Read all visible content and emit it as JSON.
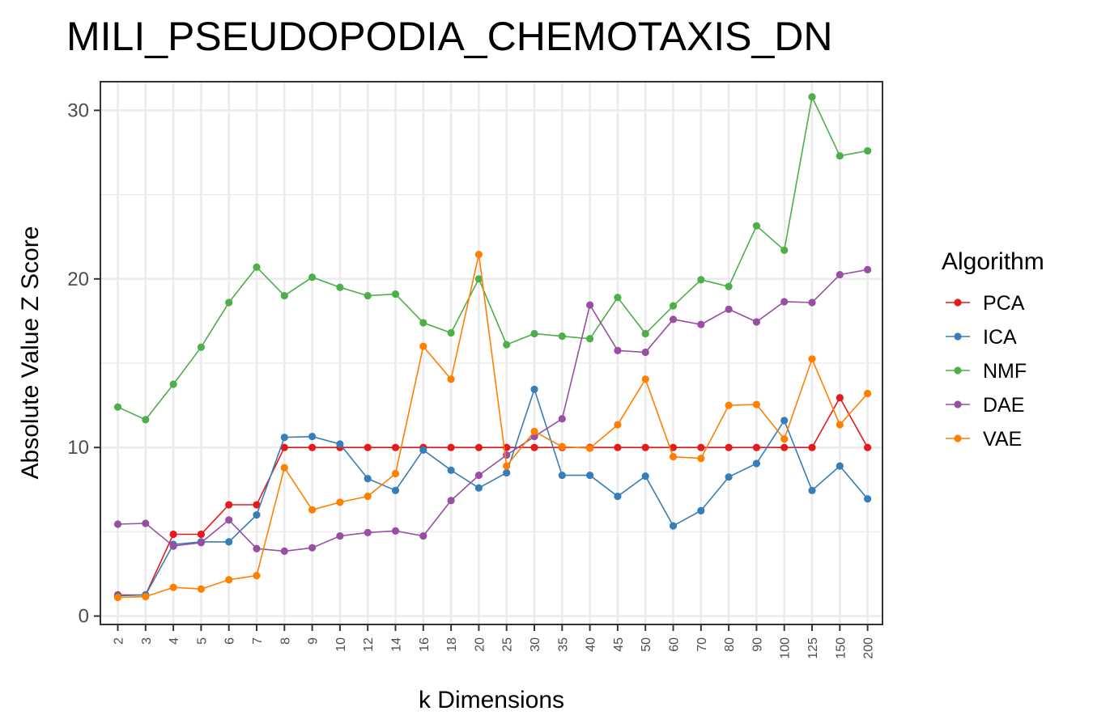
{
  "chart_data": {
    "type": "line",
    "title": "MILI_PSEUDOPODIA_CHEMOTAXIS_DN",
    "xlabel": "k Dimensions",
    "ylabel": "Absolute Value Z Score",
    "categories": [
      "2",
      "3",
      "4",
      "5",
      "6",
      "7",
      "8",
      "9",
      "10",
      "12",
      "14",
      "16",
      "18",
      "20",
      "25",
      "30",
      "35",
      "40",
      "45",
      "50",
      "60",
      "70",
      "80",
      "90",
      "100",
      "125",
      "150",
      "200"
    ],
    "yticks": [
      0,
      10,
      20,
      30
    ],
    "ylim": [
      -0.5,
      31.7
    ],
    "grid": true,
    "legend": {
      "title": "Algorithm",
      "position": "right"
    },
    "series": [
      {
        "name": "PCA",
        "color": "#e41a1c",
        "values": [
          1.25,
          1.25,
          4.85,
          4.85,
          6.6,
          6.6,
          10.0,
          10.0,
          10.0,
          10.0,
          10.0,
          10.0,
          10.0,
          10.0,
          10.0,
          10.0,
          10.0,
          10.0,
          10.0,
          10.0,
          10.0,
          10.0,
          10.0,
          10.0,
          10.0,
          10.0,
          12.95,
          10.0
        ]
      },
      {
        "name": "ICA",
        "color": "#377eb8",
        "values": [
          1.2,
          1.25,
          4.25,
          4.4,
          4.4,
          6.0,
          10.6,
          10.65,
          10.2,
          8.15,
          7.45,
          9.85,
          8.65,
          7.6,
          8.5,
          13.45,
          8.35,
          8.35,
          7.1,
          8.3,
          5.35,
          6.25,
          8.25,
          9.05,
          11.6,
          7.45,
          8.9,
          6.95
        ]
      },
      {
        "name": "NMF",
        "color": "#4daf4a",
        "values": [
          12.4,
          11.65,
          13.75,
          15.95,
          18.6,
          20.7,
          19.0,
          20.1,
          19.5,
          19.0,
          19.1,
          17.4,
          16.8,
          20.0,
          16.1,
          16.75,
          16.6,
          16.45,
          18.9,
          16.75,
          18.4,
          19.95,
          19.55,
          23.15,
          21.7,
          30.8,
          27.3,
          27.6
        ]
      },
      {
        "name": "DAE",
        "color": "#984ea3",
        "values": [
          5.45,
          5.5,
          4.15,
          4.35,
          5.7,
          4.0,
          3.85,
          4.05,
          4.75,
          4.95,
          5.05,
          4.75,
          6.85,
          8.35,
          9.55,
          10.65,
          11.7,
          18.45,
          15.75,
          15.65,
          17.6,
          17.3,
          18.2,
          17.45,
          18.65,
          18.6,
          20.25,
          20.55
        ]
      },
      {
        "name": "VAE",
        "color": "#ff7f00",
        "values": [
          1.1,
          1.15,
          1.7,
          1.6,
          2.15,
          2.4,
          8.8,
          6.3,
          6.75,
          7.1,
          8.45,
          16.0,
          14.05,
          21.45,
          8.9,
          10.95,
          10.05,
          9.95,
          11.35,
          14.05,
          9.45,
          9.35,
          12.5,
          12.55,
          10.5,
          15.25,
          11.35,
          13.2
        ]
      }
    ]
  }
}
